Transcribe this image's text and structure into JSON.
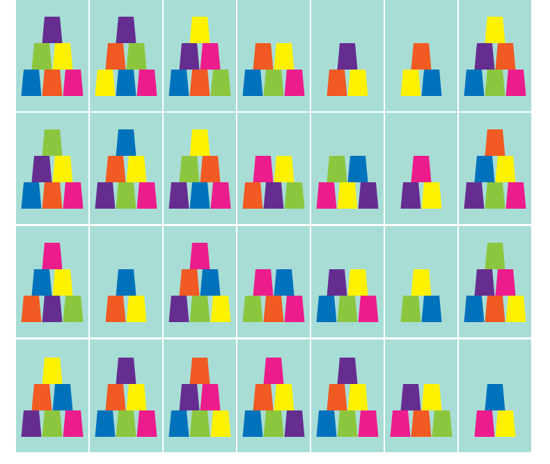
{
  "background": "#a8ddd6",
  "cards": [
    [
      [
        "#662d91"
      ],
      [
        "#8cc63f",
        "#fff200"
      ],
      [
        "#0072bc",
        "#f15a22",
        "#ec1c8c"
      ]
    ],
    [
      [
        "#662d91"
      ],
      [
        "#f15a22",
        "#8cc63f"
      ],
      [
        "#fff200",
        "#0072bc",
        "#ec1c8c"
      ]
    ],
    [
      [
        "#fff200"
      ],
      [
        "#662d91",
        "#ec1c8c"
      ],
      [
        "#0072bc",
        "#f15a22",
        "#8cc63f"
      ]
    ],
    [
      [
        "#f15a22",
        "#fff200"
      ],
      [
        "#0072bc",
        "#8cc63f",
        "#ec1c8c"
      ]
    ],
    [
      [
        "#662d91"
      ],
      [
        "#f15a22",
        "#fff200"
      ]
    ],
    [
      [
        "#f15a22"
      ],
      [
        "#fff200",
        "#0072bc"
      ]
    ],
    [
      [
        "#fff200"
      ],
      [
        "#662d91",
        "#f15a22"
      ],
      [
        "#0072bc",
        "#8cc63f",
        "#ec1c8c"
      ]
    ],
    [
      [
        "#8cc63f"
      ],
      [
        "#662d91",
        "#fff200"
      ],
      [
        "#0072bc",
        "#f15a22",
        "#ec1c8c"
      ]
    ],
    [
      [
        "#0072bc"
      ],
      [
        "#f15a22",
        "#fff200"
      ],
      [
        "#662d91",
        "#8cc63f",
        "#ec1c8c"
      ]
    ],
    [
      [
        "#fff200"
      ],
      [
        "#8cc63f",
        "#f15a22"
      ],
      [
        "#662d91",
        "#0072bc",
        "#ec1c8c"
      ]
    ],
    [
      [
        "#ec1c8c",
        "#fff200"
      ],
      [
        "#f15a22",
        "#662d91",
        "#8cc63f"
      ]
    ],
    [
      [
        "#8cc63f",
        "#0072bc"
      ],
      [
        "#ec1c8c",
        "#fff200",
        "#662d91"
      ]
    ],
    [
      [
        "#ec1c8c"
      ],
      [
        "#662d91",
        "#fff200"
      ]
    ],
    [
      [
        "#f15a22"
      ],
      [
        "#0072bc",
        "#fff200"
      ],
      [
        "#662d91",
        "#8cc63f",
        "#ec1c8c"
      ]
    ],
    [
      [
        "#ec1c8c"
      ],
      [
        "#0072bc",
        "#fff200"
      ],
      [
        "#f15a22",
        "#662d91",
        "#8cc63f"
      ]
    ],
    [
      [
        "#0072bc"
      ],
      [
        "#f15a22",
        "#fff200"
      ]
    ],
    [
      [
        "#ec1c8c"
      ],
      [
        "#f15a22",
        "#0072bc"
      ],
      [
        "#662d91",
        "#8cc63f",
        "#fff200"
      ]
    ],
    [
      [
        "#ec1c8c",
        "#0072bc"
      ],
      [
        "#8cc63f",
        "#f15a22",
        "#ec1c8c"
      ]
    ],
    [
      [
        "#662d91",
        "#fff200"
      ],
      [
        "#0072bc",
        "#8cc63f",
        "#ec1c8c"
      ]
    ],
    [
      [
        "#fff200"
      ],
      [
        "#8cc63f",
        "#0072bc"
      ]
    ],
    [
      [
        "#8cc63f"
      ],
      [
        "#662d91",
        "#ec1c8c"
      ],
      [
        "#0072bc",
        "#f15a22",
        "#fff200"
      ]
    ],
    [
      [
        "#fff200"
      ],
      [
        "#f15a22",
        "#0072bc"
      ],
      [
        "#662d91",
        "#8cc63f",
        "#ec1c8c"
      ]
    ],
    [
      [
        "#662d91"
      ],
      [
        "#f15a22",
        "#fff200"
      ],
      [
        "#0072bc",
        "#8cc63f",
        "#ec1c8c"
      ]
    ],
    [
      [
        "#f15a22"
      ],
      [
        "#662d91",
        "#ec1c8c"
      ],
      [
        "#0072bc",
        "#8cc63f",
        "#fff200"
      ]
    ],
    [
      [
        "#ec1c8c"
      ],
      [
        "#f15a22",
        "#fff200"
      ],
      [
        "#0072bc",
        "#8cc63f",
        "#662d91"
      ]
    ],
    [
      [
        "#662d91"
      ],
      [
        "#f15a22",
        "#fff200"
      ],
      [
        "#0072bc",
        "#8cc63f",
        "#ec1c8c"
      ]
    ],
    [
      [
        "#662d91",
        "#fff200"
      ],
      [
        "#ec1c8c",
        "#f15a22",
        "#8cc63f"
      ]
    ],
    [
      [
        "#0072bc"
      ],
      [
        "#ec1c8c",
        "#fff200"
      ]
    ]
  ]
}
